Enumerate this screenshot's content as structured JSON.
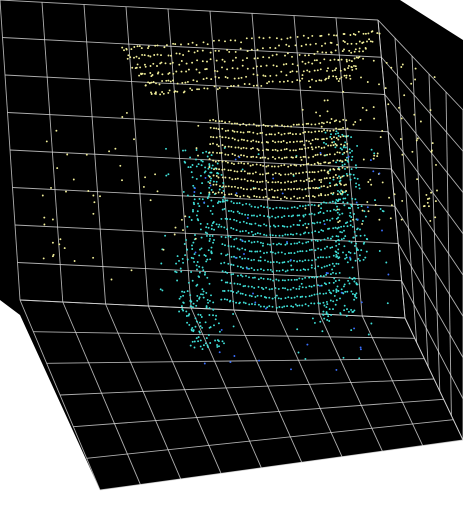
{
  "colors": {
    "background": "#ffffff",
    "volume": "#000000",
    "grid": "#d9d9d9",
    "points_cyan": "#3fe0d8",
    "points_yellow": "#f2ef9a",
    "points_blue": "#3a6fff"
  },
  "scene": {
    "type": "3d-point-cloud",
    "view": "perspective",
    "grid": true,
    "dominant_hues": [
      "cyan",
      "light-yellow"
    ]
  }
}
